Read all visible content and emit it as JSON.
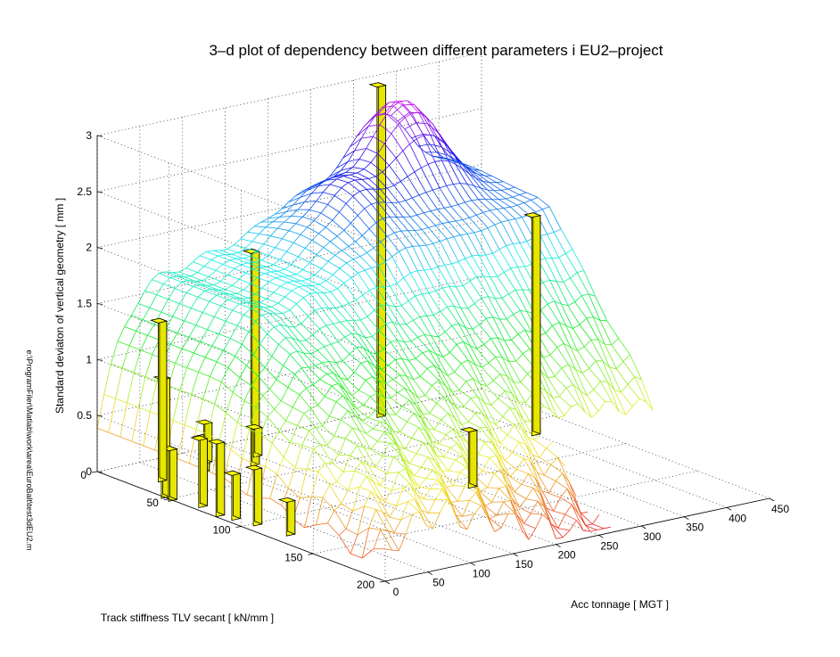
{
  "chart_data": {
    "type": "surface3d",
    "title": "3–d plot of dependency between different parameters i EU2–project",
    "xlabel": "Acc tonnage [ MGT ]",
    "ylabel": "Track stiffness TLV secant [ kN/mm ]",
    "zlabel": "Standard deviaton of vertical geometry [ mm ]",
    "side_label": "e:\\ProgramFiler\\Matlab\\work\\area\\EuroBalt\\test3dEU2.m",
    "xlim": [
      0,
      450
    ],
    "ylim": [
      0,
      200
    ],
    "zlim": [
      0,
      3
    ],
    "x_ticks": [
      "0",
      "50",
      "100",
      "150",
      "200",
      "250",
      "300",
      "350",
      "400",
      "450"
    ],
    "y_ticks": [
      "0",
      "50",
      "100",
      "150",
      "200"
    ],
    "z_ticks": [
      "0",
      "0.5",
      "1",
      "1.5",
      "2",
      "2.5",
      "3"
    ],
    "grid": true,
    "surface_colormap": "hsv-like (red low → yellow → green → cyan → blue → magenta high)",
    "bar_color": "#ffff00",
    "bars": [
      {
        "x": 0,
        "y": 45,
        "z": 1.06
      },
      {
        "x": 0,
        "y": 50,
        "z": 0.45
      },
      {
        "x": 10,
        "y": 65,
        "z": 0.6
      },
      {
        "x": 5,
        "y": 80,
        "z": 0.65
      },
      {
        "x": 10,
        "y": 88,
        "z": 0.4
      },
      {
        "x": 15,
        "y": 100,
        "z": 0.5
      },
      {
        "x": 20,
        "y": 120,
        "z": 0.3
      },
      {
        "x": 30,
        "y": 25,
        "z": 1.42
      },
      {
        "x": 80,
        "y": 25,
        "z": 0.3
      },
      {
        "x": 100,
        "y": 15,
        "z": 0.35
      },
      {
        "x": 130,
        "y": 30,
        "z": 1.9
      },
      {
        "x": 150,
        "y": 20,
        "z": 0.25
      },
      {
        "x": 250,
        "y": 110,
        "z": 0.5
      },
      {
        "x": 320,
        "y": 5,
        "z": 2.95
      },
      {
        "x": 400,
        "y": 65,
        "z": 1.95
      }
    ]
  }
}
